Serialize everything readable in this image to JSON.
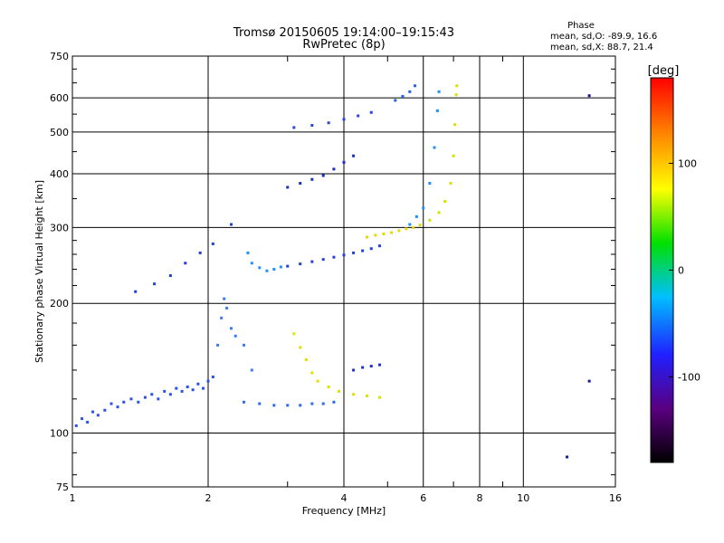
{
  "chart_data": {
    "type": "scatter",
    "title": "Tromsø 20150605 19:14:00–19:15:43",
    "subtitle": "RwPretec (8p)",
    "xlabel": "Frequency [MHz]",
    "ylabel": "Stationary phase Virtual Height [km]",
    "x_scale": "log",
    "y_scale": "log",
    "xlim": [
      1,
      16
    ],
    "ylim": [
      75,
      750
    ],
    "x_ticks": [
      1,
      2,
      4,
      6,
      8,
      10,
      16
    ],
    "x_ticks_minor": [
      3,
      5,
      7,
      9
    ],
    "y_ticks": [
      75,
      100,
      200,
      300,
      400,
      500,
      600,
      750
    ],
    "grid": true,
    "phase_box": {
      "title": "Phase",
      "line_o": "mean, sd,O: -89.9, 16.6",
      "line_x": "mean, sd,X: 88.7, 21.4"
    },
    "colorbar": {
      "unit": "[deg]",
      "range": [
        -180,
        180
      ],
      "ticks": [
        100,
        0,
        -100
      ],
      "colors": [
        "#000000",
        "#5a0080",
        "#2020ff",
        "#00bfff",
        "#00e000",
        "#ffff00",
        "#ff8000",
        "#ff0000"
      ]
    },
    "series": [
      {
        "color": "#2a52e8",
        "points": [
          [
            1.02,
            104
          ],
          [
            1.05,
            108
          ],
          [
            1.08,
            106
          ],
          [
            1.11,
            112
          ],
          [
            1.14,
            110
          ],
          [
            1.18,
            113
          ],
          [
            1.22,
            117
          ],
          [
            1.26,
            115
          ],
          [
            1.3,
            118
          ],
          [
            1.35,
            120
          ],
          [
            1.4,
            118
          ],
          [
            1.45,
            121
          ],
          [
            1.5,
            123
          ],
          [
            1.55,
            120
          ],
          [
            1.6,
            125
          ],
          [
            1.65,
            123
          ],
          [
            1.7,
            127
          ],
          [
            1.75,
            125
          ],
          [
            1.8,
            128
          ],
          [
            1.85,
            126
          ],
          [
            1.9,
            130
          ],
          [
            1.95,
            127
          ],
          [
            2.0,
            132
          ],
          [
            2.05,
            135
          ]
        ]
      },
      {
        "color": "#1f3fd0",
        "points": [
          [
            1.38,
            213
          ],
          [
            1.52,
            222
          ],
          [
            1.65,
            232
          ],
          [
            1.78,
            248
          ],
          [
            1.92,
            262
          ],
          [
            2.05,
            275
          ],
          [
            2.25,
            305
          ]
        ]
      },
      {
        "color": "#3a7cf0",
        "points": [
          [
            2.1,
            160
          ],
          [
            2.14,
            185
          ],
          [
            2.17,
            205
          ],
          [
            2.2,
            195
          ],
          [
            2.25,
            175
          ],
          [
            2.3,
            168
          ],
          [
            2.4,
            160
          ],
          [
            2.5,
            140
          ]
        ]
      },
      {
        "color": "#1e90ff",
        "points": [
          [
            2.45,
            262
          ],
          [
            2.5,
            248
          ],
          [
            2.6,
            242
          ],
          [
            2.7,
            238
          ],
          [
            2.8,
            240
          ],
          [
            2.9,
            243
          ]
        ]
      },
      {
        "color": "#2540d8",
        "points": [
          [
            3.0,
            244
          ],
          [
            3.2,
            247
          ],
          [
            3.4,
            250
          ],
          [
            3.6,
            253
          ],
          [
            3.8,
            256
          ],
          [
            4.0,
            259
          ],
          [
            4.2,
            262
          ],
          [
            4.4,
            265
          ],
          [
            4.6,
            268
          ],
          [
            4.8,
            272
          ]
        ]
      },
      {
        "color": "#e6d800",
        "points": [
          [
            4.5,
            285
          ],
          [
            4.7,
            288
          ],
          [
            4.9,
            290
          ],
          [
            5.1,
            292
          ],
          [
            5.3,
            295
          ],
          [
            5.5,
            298
          ],
          [
            5.7,
            300
          ],
          [
            5.9,
            304
          ]
        ]
      },
      {
        "color": "#1f8fff",
        "points": [
          [
            5.6,
            305
          ],
          [
            5.8,
            318
          ],
          [
            6.0,
            333
          ],
          [
            6.2,
            380
          ],
          [
            6.35,
            460
          ],
          [
            6.45,
            560
          ],
          [
            6.5,
            620
          ]
        ]
      },
      {
        "color": "#d8e000",
        "points": [
          [
            6.2,
            312
          ],
          [
            6.5,
            325
          ],
          [
            6.7,
            345
          ],
          [
            6.9,
            380
          ],
          [
            7.0,
            440
          ],
          [
            7.05,
            520
          ],
          [
            7.1,
            610
          ],
          [
            7.12,
            640
          ]
        ]
      },
      {
        "color": "#1a2fc0",
        "points": [
          [
            3.0,
            372
          ],
          [
            3.2,
            380
          ],
          [
            3.4,
            388
          ],
          [
            3.6,
            396
          ],
          [
            3.8,
            410
          ],
          [
            4.0,
            425
          ],
          [
            4.2,
            440
          ]
        ]
      },
      {
        "color": "#2a46d8",
        "points": [
          [
            3.1,
            512
          ],
          [
            3.4,
            518
          ],
          [
            3.7,
            525
          ],
          [
            4.0,
            535
          ],
          [
            4.3,
            545
          ],
          [
            4.6,
            555
          ]
        ]
      },
      {
        "color": "#1e66e8",
        "points": [
          [
            5.2,
            592
          ],
          [
            5.4,
            605
          ],
          [
            5.6,
            620
          ],
          [
            5.75,
            640
          ]
        ]
      },
      {
        "color": "#2a6ae8",
        "points": [
          [
            2.4,
            118
          ],
          [
            2.6,
            117
          ],
          [
            2.8,
            116
          ],
          [
            3.0,
            116
          ],
          [
            3.2,
            116
          ],
          [
            3.4,
            117
          ],
          [
            3.6,
            117
          ],
          [
            3.8,
            118
          ]
        ]
      },
      {
        "color": "#e0e000",
        "points": [
          [
            3.1,
            170
          ],
          [
            3.2,
            158
          ],
          [
            3.3,
            148
          ],
          [
            3.4,
            138
          ],
          [
            3.5,
            132
          ],
          [
            3.7,
            128
          ],
          [
            3.9,
            125
          ],
          [
            4.2,
            123
          ],
          [
            4.5,
            122
          ],
          [
            4.8,
            121
          ]
        ]
      },
      {
        "color": "#2030d0",
        "points": [
          [
            4.2,
            140
          ],
          [
            4.4,
            142
          ],
          [
            4.6,
            143
          ],
          [
            4.8,
            144
          ]
        ]
      },
      {
        "color": "#1a1a90",
        "points": [
          [
            12.5,
            88
          ],
          [
            14.0,
            132
          ],
          [
            14.0,
            607
          ]
        ]
      }
    ]
  }
}
